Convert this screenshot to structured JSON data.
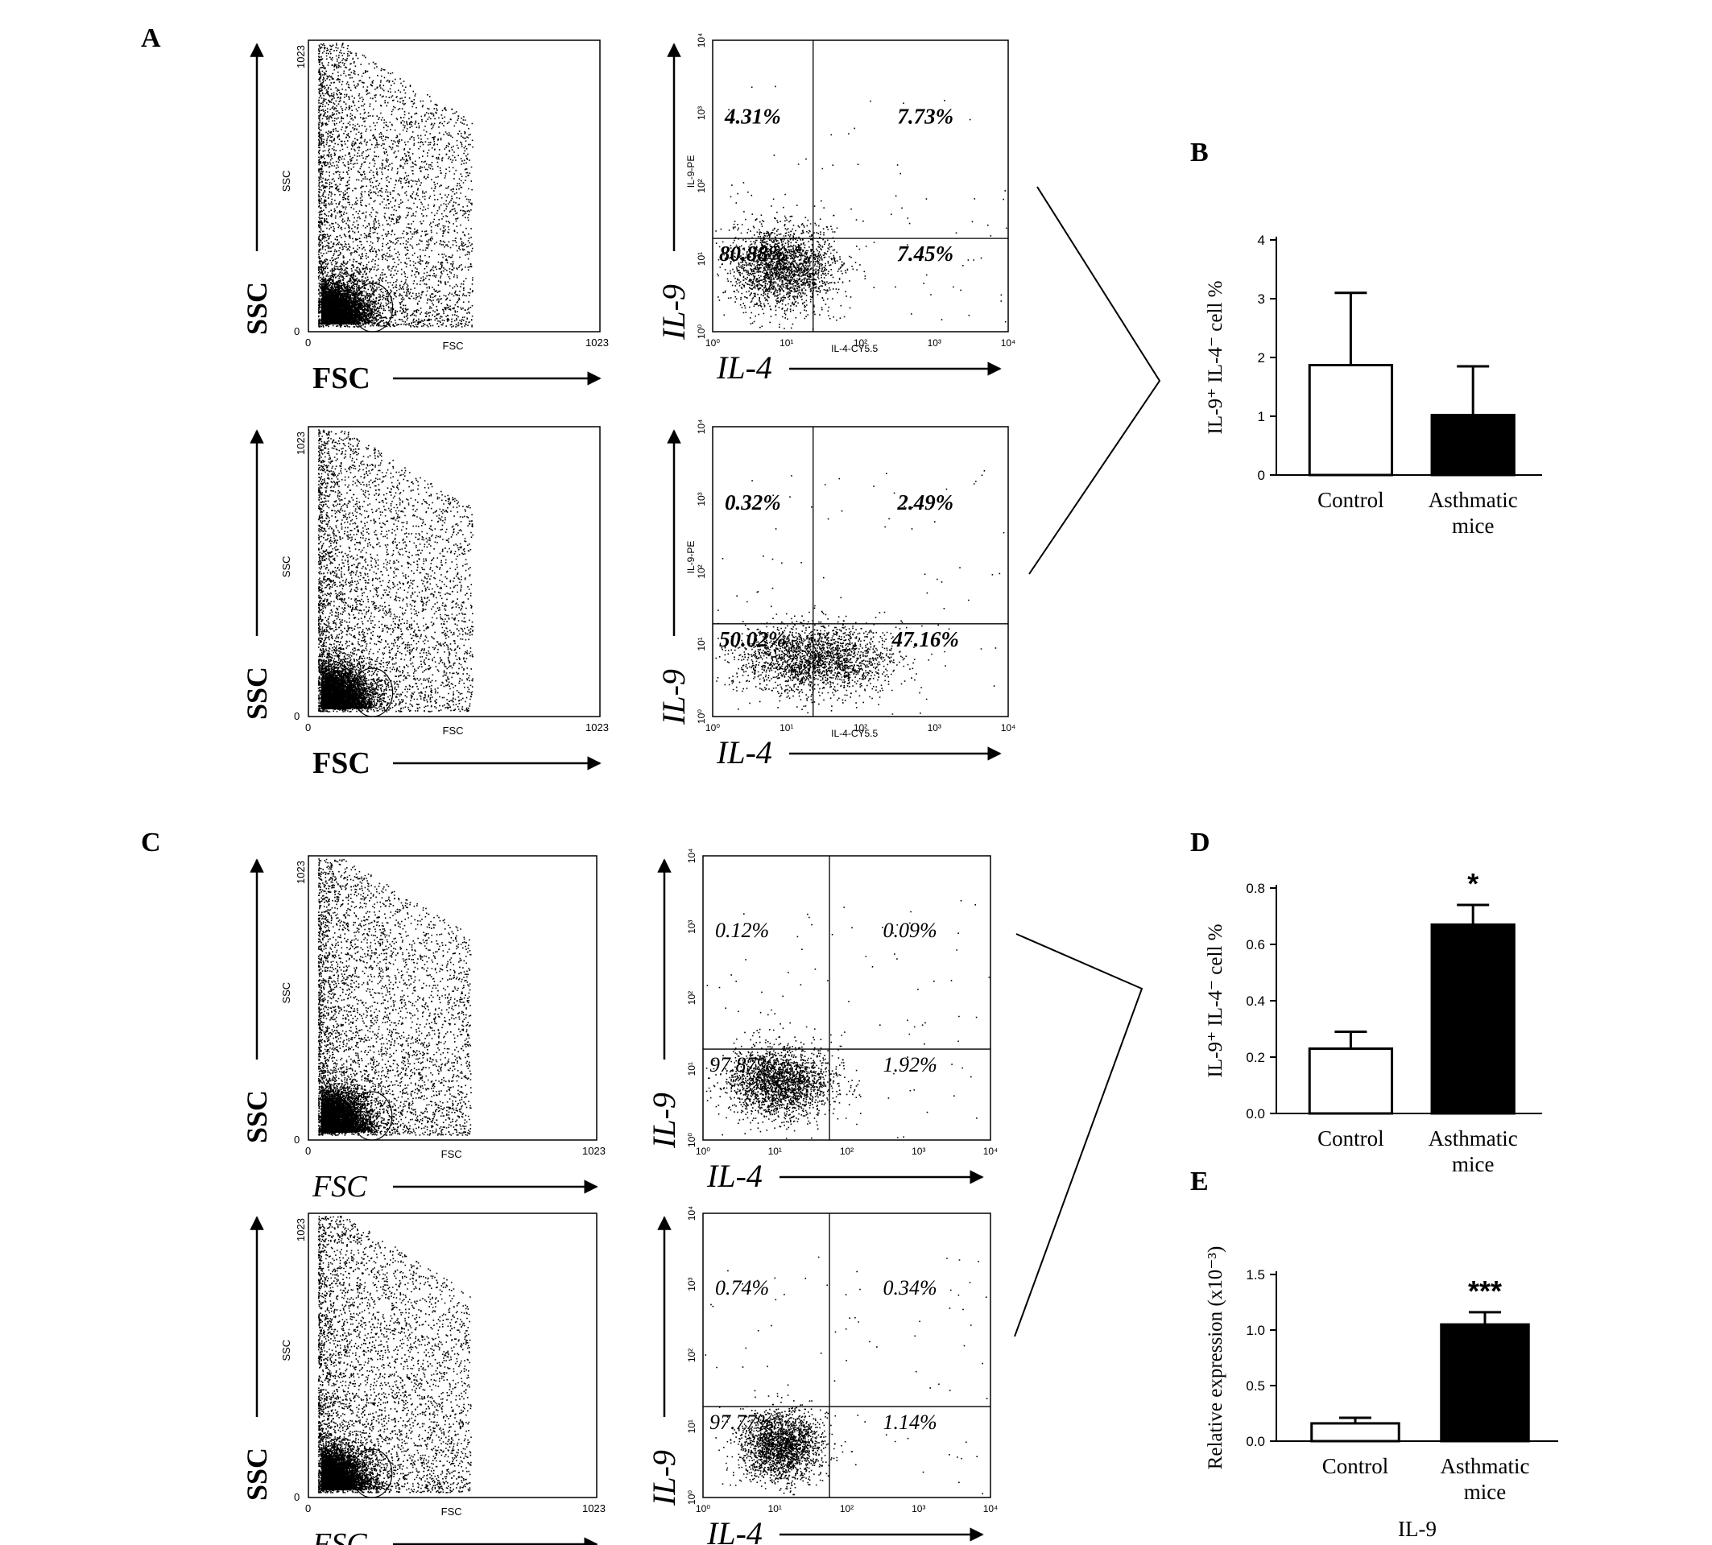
{
  "panel_labels": [
    "A",
    "B",
    "C",
    "D",
    "E"
  ],
  "flow_axes": {
    "ssc_big": "SSC",
    "fsc_big": "FSC",
    "ssc_small": "SSC",
    "fsc_small": "FSC",
    "scatter_tick_max": "1023",
    "scatter_tick_zero": "0",
    "il9_big": "IL-9",
    "il4_big": "IL-4",
    "il9_small": "IL-9-PE",
    "il4_small": "IL-4-CY5.5",
    "log_ticks": [
      "10⁰",
      "10¹",
      "10²",
      "10³",
      "10⁴"
    ]
  },
  "chart_data": [
    {
      "panel": "A-top",
      "type": "scatter",
      "quadrants": {
        "upper_left": "4.31%",
        "upper_right": "7.73%",
        "lower_left": "80.88%",
        "lower_right": "7.45%"
      }
    },
    {
      "panel": "A-bottom",
      "type": "scatter",
      "quadrants": {
        "upper_left": "0.32%",
        "upper_right": "2.49%",
        "lower_left": "50.02%",
        "lower_right": "47.16%"
      }
    },
    {
      "panel": "B",
      "type": "bar",
      "categories": [
        "Control",
        "Asthmatic mice"
      ],
      "values": [
        1.87,
        1.02
      ],
      "errors": [
        1.23,
        0.83
      ],
      "fills": [
        "#ffffff",
        "#000000"
      ],
      "ylabel": "IL-9⁺ IL-4⁻ cell %",
      "ylim": [
        0,
        4
      ],
      "yticks": [
        "0",
        "1",
        "2",
        "3",
        "4"
      ]
    },
    {
      "panel": "C-top",
      "type": "scatter",
      "quadrants": {
        "upper_left": "0.12%",
        "upper_right": "0.09%",
        "lower_left": "97.87%",
        "lower_right": "1.92%"
      }
    },
    {
      "panel": "C-bottom",
      "type": "scatter",
      "quadrants": {
        "upper_left": "0.74%",
        "upper_right": "0.34%",
        "lower_left": "97.77%",
        "lower_right": "1.14%"
      }
    },
    {
      "panel": "D",
      "type": "bar",
      "categories": [
        "Control",
        "Asthmatic mice"
      ],
      "values": [
        0.23,
        0.67
      ],
      "errors": [
        0.06,
        0.07
      ],
      "fills": [
        "#ffffff",
        "#000000"
      ],
      "significance": [
        "",
        "*"
      ],
      "ylabel": "IL-9⁺ IL-4⁻ cell %",
      "ylim": [
        0,
        0.8
      ],
      "yticks": [
        "0.0",
        "0.2",
        "0.4",
        "0.6",
        "0.8"
      ]
    },
    {
      "panel": "E",
      "type": "bar",
      "categories": [
        "Control",
        "Asthmatic mice"
      ],
      "values": [
        0.16,
        1.05
      ],
      "errors": [
        0.05,
        0.11
      ],
      "fills": [
        "#ffffff",
        "#000000"
      ],
      "significance": [
        "",
        "***"
      ],
      "ylabel": "Relative expression (x10⁻³)",
      "xlabel": "IL-9",
      "ylim": [
        0,
        1.5
      ],
      "yticks": [
        "0.0",
        "0.5",
        "1.0",
        "1.5"
      ]
    }
  ]
}
